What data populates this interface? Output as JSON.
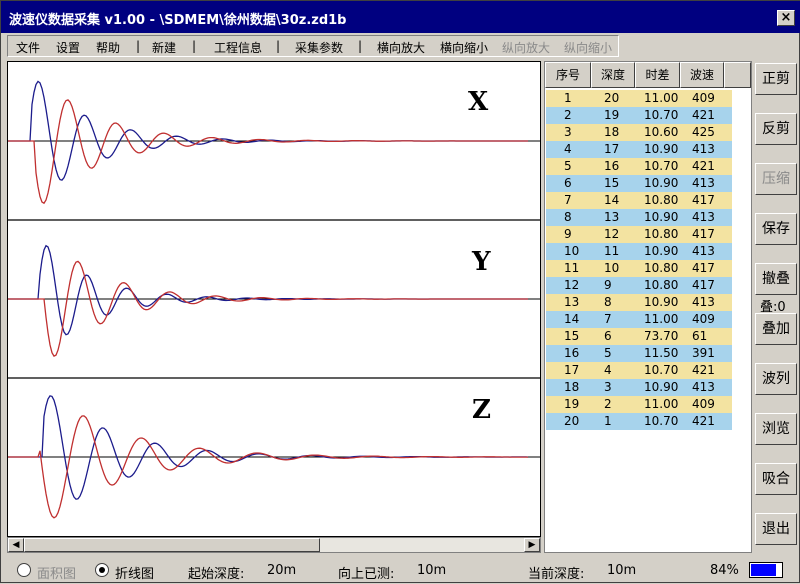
{
  "window": {
    "title": "波速仪数据采集 v1.00  - \\SDMEM\\徐州数据\\30z.zd1b",
    "close_label": "×"
  },
  "menu": {
    "file": "文件",
    "settings": "设置",
    "help": "帮助",
    "new": "新建",
    "project_info": "工程信息",
    "acq_params": "采集参数",
    "h_zoom_in": "横向放大",
    "h_zoom_out": "横向缩小",
    "v_zoom_in": "纵向放大",
    "v_zoom_out": "纵向缩小",
    "separator": "|"
  },
  "waveforms": {
    "labels": [
      "X",
      "Y",
      "Z"
    ],
    "colors": {
      "blue": "#1c1c8c",
      "red": "#c03030"
    }
  },
  "table": {
    "headers": [
      "序号",
      "深度",
      "时差",
      "波速"
    ],
    "rows": [
      [
        "1",
        "20",
        "11.00",
        "409"
      ],
      [
        "2",
        "19",
        "10.70",
        "421"
      ],
      [
        "3",
        "18",
        "10.60",
        "425"
      ],
      [
        "4",
        "17",
        "10.90",
        "413"
      ],
      [
        "5",
        "16",
        "10.70",
        "421"
      ],
      [
        "6",
        "15",
        "10.90",
        "413"
      ],
      [
        "7",
        "14",
        "10.80",
        "417"
      ],
      [
        "8",
        "13",
        "10.90",
        "413"
      ],
      [
        "9",
        "12",
        "10.80",
        "417"
      ],
      [
        "10",
        "11",
        "10.90",
        "413"
      ],
      [
        "11",
        "10",
        "10.80",
        "417"
      ],
      [
        "12",
        "9",
        "10.80",
        "417"
      ],
      [
        "13",
        "8",
        "10.90",
        "413"
      ],
      [
        "14",
        "7",
        "11.00",
        "409"
      ],
      [
        "15",
        "6",
        "73.70",
        "61"
      ],
      [
        "16",
        "5",
        "11.50",
        "391"
      ],
      [
        "17",
        "4",
        "10.70",
        "421"
      ],
      [
        "18",
        "3",
        "10.90",
        "413"
      ],
      [
        "19",
        "2",
        "11.00",
        "409"
      ],
      [
        "20",
        "1",
        "10.70",
        "421"
      ]
    ]
  },
  "side_buttons": {
    "positive_cut": "正剪",
    "negative_cut": "反剪",
    "compress": "压缩",
    "save": "保存",
    "undo_stack": "撤叠",
    "stack_count": "叠:0",
    "stack": "叠加",
    "wave_list": "波列",
    "browse": "浏览",
    "merge": "吸合",
    "exit": "退出"
  },
  "status": {
    "area_mode": "面积图",
    "line_mode": "折线图",
    "start_depth_label": "起始深度:",
    "start_depth_value": "20m",
    "measured_up_label": "向上已测:",
    "measured_up_value": "10m",
    "current_depth_label": "当前深度:",
    "current_depth_value": "10m",
    "battery_percent": "84%",
    "battery_level": 0.84
  }
}
